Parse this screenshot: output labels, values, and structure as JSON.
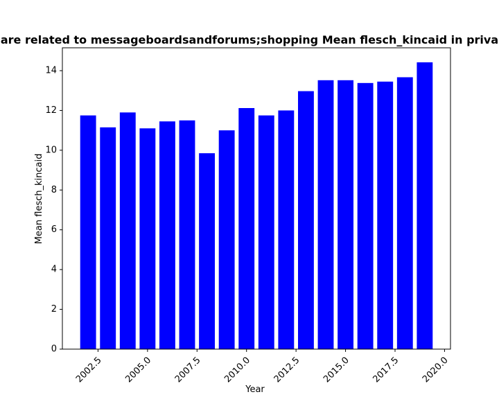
{
  "chart_data": {
    "type": "bar",
    "title": "are related to messageboardsandforums;shopping Mean flesch_kincaid in priva",
    "xlabel": "Year",
    "ylabel": "Mean flesch_kincaid",
    "x": [
      2002,
      2003,
      2004,
      2005,
      2006,
      2007,
      2008,
      2009,
      2010,
      2011,
      2012,
      2013,
      2014,
      2015,
      2016,
      2017,
      2018,
      2019
    ],
    "values": [
      11.75,
      11.15,
      11.9,
      11.1,
      11.45,
      11.5,
      9.85,
      11.0,
      12.12,
      11.75,
      12.0,
      12.97,
      13.52,
      13.52,
      13.38,
      13.45,
      13.67,
      14.42
    ],
    "xlim": [
      2000.7,
      2020.3
    ],
    "ylim": [
      0,
      15.15
    ],
    "xticks": [
      "2002.5",
      "2005.0",
      "2007.5",
      "2010.0",
      "2012.5",
      "2015.0",
      "2017.5",
      "2020.0"
    ],
    "yticks": [
      "0",
      "2",
      "4",
      "6",
      "8",
      "10",
      "12",
      "14"
    ],
    "bar_color": "#0000ff",
    "grid": false,
    "legend": "none"
  }
}
